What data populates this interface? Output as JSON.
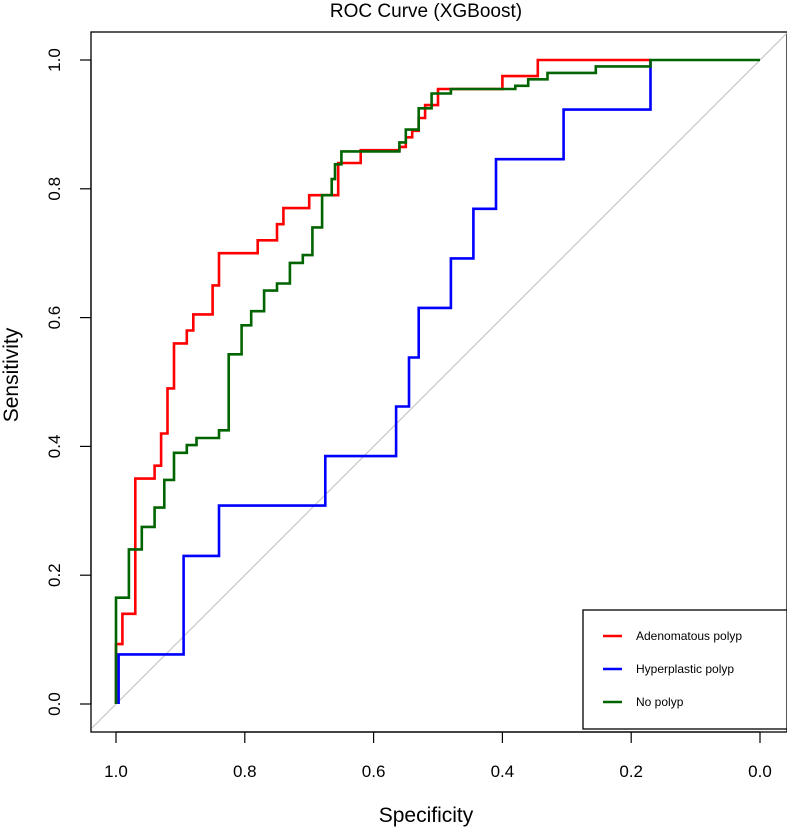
{
  "chart_data": {
    "type": "line",
    "title": "ROC Curve (XGBoost)",
    "xlabel": "Specificity",
    "ylabel": "Sensitivity",
    "xlim": [
      1.0,
      0.0
    ],
    "ylim": [
      0.0,
      1.0
    ],
    "x_ticks": [
      "1.0",
      "0.8",
      "0.6",
      "0.4",
      "0.2",
      "0.0"
    ],
    "y_ticks": [
      "0.0",
      "0.2",
      "0.4",
      "0.6",
      "0.8",
      "1.0"
    ],
    "legend_position": "bottom-right",
    "reference_line": {
      "from": [
        1.0,
        0.0
      ],
      "to": [
        0.0,
        1.0
      ],
      "color": "#c8c8c8"
    },
    "series": [
      {
        "name": "Adenomatous polyp",
        "color": "#ff0000",
        "points": [
          [
            1.0,
            0.0
          ],
          [
            1.0,
            0.093
          ],
          [
            0.99,
            0.093
          ],
          [
            0.99,
            0.14
          ],
          [
            0.97,
            0.14
          ],
          [
            0.97,
            0.35
          ],
          [
            0.94,
            0.35
          ],
          [
            0.94,
            0.37
          ],
          [
            0.93,
            0.37
          ],
          [
            0.93,
            0.42
          ],
          [
            0.92,
            0.42
          ],
          [
            0.92,
            0.49
          ],
          [
            0.91,
            0.49
          ],
          [
            0.91,
            0.56
          ],
          [
            0.89,
            0.56
          ],
          [
            0.89,
            0.58
          ],
          [
            0.88,
            0.58
          ],
          [
            0.88,
            0.605
          ],
          [
            0.85,
            0.605
          ],
          [
            0.85,
            0.65
          ],
          [
            0.84,
            0.65
          ],
          [
            0.84,
            0.7
          ],
          [
            0.78,
            0.7
          ],
          [
            0.78,
            0.72
          ],
          [
            0.75,
            0.72
          ],
          [
            0.75,
            0.745
          ],
          [
            0.74,
            0.745
          ],
          [
            0.74,
            0.77
          ],
          [
            0.7,
            0.77
          ],
          [
            0.7,
            0.79
          ],
          [
            0.655,
            0.79
          ],
          [
            0.655,
            0.84
          ],
          [
            0.62,
            0.84
          ],
          [
            0.62,
            0.86
          ],
          [
            0.56,
            0.86
          ],
          [
            0.56,
            0.865
          ],
          [
            0.55,
            0.865
          ],
          [
            0.55,
            0.88
          ],
          [
            0.54,
            0.88
          ],
          [
            0.54,
            0.89
          ],
          [
            0.53,
            0.89
          ],
          [
            0.53,
            0.91
          ],
          [
            0.52,
            0.91
          ],
          [
            0.52,
            0.93
          ],
          [
            0.5,
            0.93
          ],
          [
            0.5,
            0.955
          ],
          [
            0.4,
            0.955
          ],
          [
            0.4,
            0.975
          ],
          [
            0.345,
            0.975
          ],
          [
            0.345,
            1.0
          ],
          [
            0.17,
            1.0
          ]
        ]
      },
      {
        "name": "Hyperplastic polyp",
        "color": "#0000ff",
        "points": [
          [
            0.996,
            0.0
          ],
          [
            0.996,
            0.077
          ],
          [
            0.895,
            0.077
          ],
          [
            0.895,
            0.23
          ],
          [
            0.84,
            0.23
          ],
          [
            0.84,
            0.308
          ],
          [
            0.675,
            0.308
          ],
          [
            0.675,
            0.385
          ],
          [
            0.565,
            0.385
          ],
          [
            0.565,
            0.462
          ],
          [
            0.545,
            0.462
          ],
          [
            0.545,
            0.538
          ],
          [
            0.53,
            0.538
          ],
          [
            0.53,
            0.615
          ],
          [
            0.48,
            0.615
          ],
          [
            0.48,
            0.692
          ],
          [
            0.445,
            0.692
          ],
          [
            0.445,
            0.769
          ],
          [
            0.41,
            0.769
          ],
          [
            0.41,
            0.846
          ],
          [
            0.305,
            0.846
          ],
          [
            0.305,
            0.923
          ],
          [
            0.17,
            0.923
          ],
          [
            0.17,
            1.0
          ]
        ]
      },
      {
        "name": "No polyp",
        "color": "#006400",
        "points": [
          [
            1.0,
            0.0
          ],
          [
            1.0,
            0.165
          ],
          [
            0.98,
            0.165
          ],
          [
            0.98,
            0.24
          ],
          [
            0.96,
            0.24
          ],
          [
            0.96,
            0.275
          ],
          [
            0.94,
            0.275
          ],
          [
            0.94,
            0.305
          ],
          [
            0.925,
            0.305
          ],
          [
            0.925,
            0.348
          ],
          [
            0.91,
            0.348
          ],
          [
            0.91,
            0.39
          ],
          [
            0.89,
            0.39
          ],
          [
            0.89,
            0.402
          ],
          [
            0.875,
            0.402
          ],
          [
            0.875,
            0.413
          ],
          [
            0.84,
            0.413
          ],
          [
            0.84,
            0.425
          ],
          [
            0.825,
            0.425
          ],
          [
            0.825,
            0.543
          ],
          [
            0.805,
            0.543
          ],
          [
            0.805,
            0.588
          ],
          [
            0.79,
            0.588
          ],
          [
            0.79,
            0.61
          ],
          [
            0.77,
            0.61
          ],
          [
            0.77,
            0.642
          ],
          [
            0.75,
            0.642
          ],
          [
            0.75,
            0.653
          ],
          [
            0.73,
            0.653
          ],
          [
            0.73,
            0.685
          ],
          [
            0.71,
            0.685
          ],
          [
            0.71,
            0.697
          ],
          [
            0.695,
            0.697
          ],
          [
            0.695,
            0.74
          ],
          [
            0.68,
            0.74
          ],
          [
            0.68,
            0.79
          ],
          [
            0.665,
            0.79
          ],
          [
            0.665,
            0.815
          ],
          [
            0.66,
            0.815
          ],
          [
            0.66,
            0.838
          ],
          [
            0.65,
            0.838
          ],
          [
            0.65,
            0.858
          ],
          [
            0.56,
            0.858
          ],
          [
            0.56,
            0.872
          ],
          [
            0.55,
            0.872
          ],
          [
            0.55,
            0.892
          ],
          [
            0.53,
            0.892
          ],
          [
            0.53,
            0.925
          ],
          [
            0.51,
            0.925
          ],
          [
            0.51,
            0.948
          ],
          [
            0.48,
            0.948
          ],
          [
            0.48,
            0.955
          ],
          [
            0.38,
            0.955
          ],
          [
            0.38,
            0.96
          ],
          [
            0.36,
            0.96
          ],
          [
            0.36,
            0.97
          ],
          [
            0.33,
            0.97
          ],
          [
            0.33,
            0.98
          ],
          [
            0.255,
            0.98
          ],
          [
            0.255,
            0.99
          ],
          [
            0.17,
            0.99
          ],
          [
            0.17,
            1.0
          ],
          [
            0.0,
            1.0
          ]
        ]
      }
    ]
  }
}
